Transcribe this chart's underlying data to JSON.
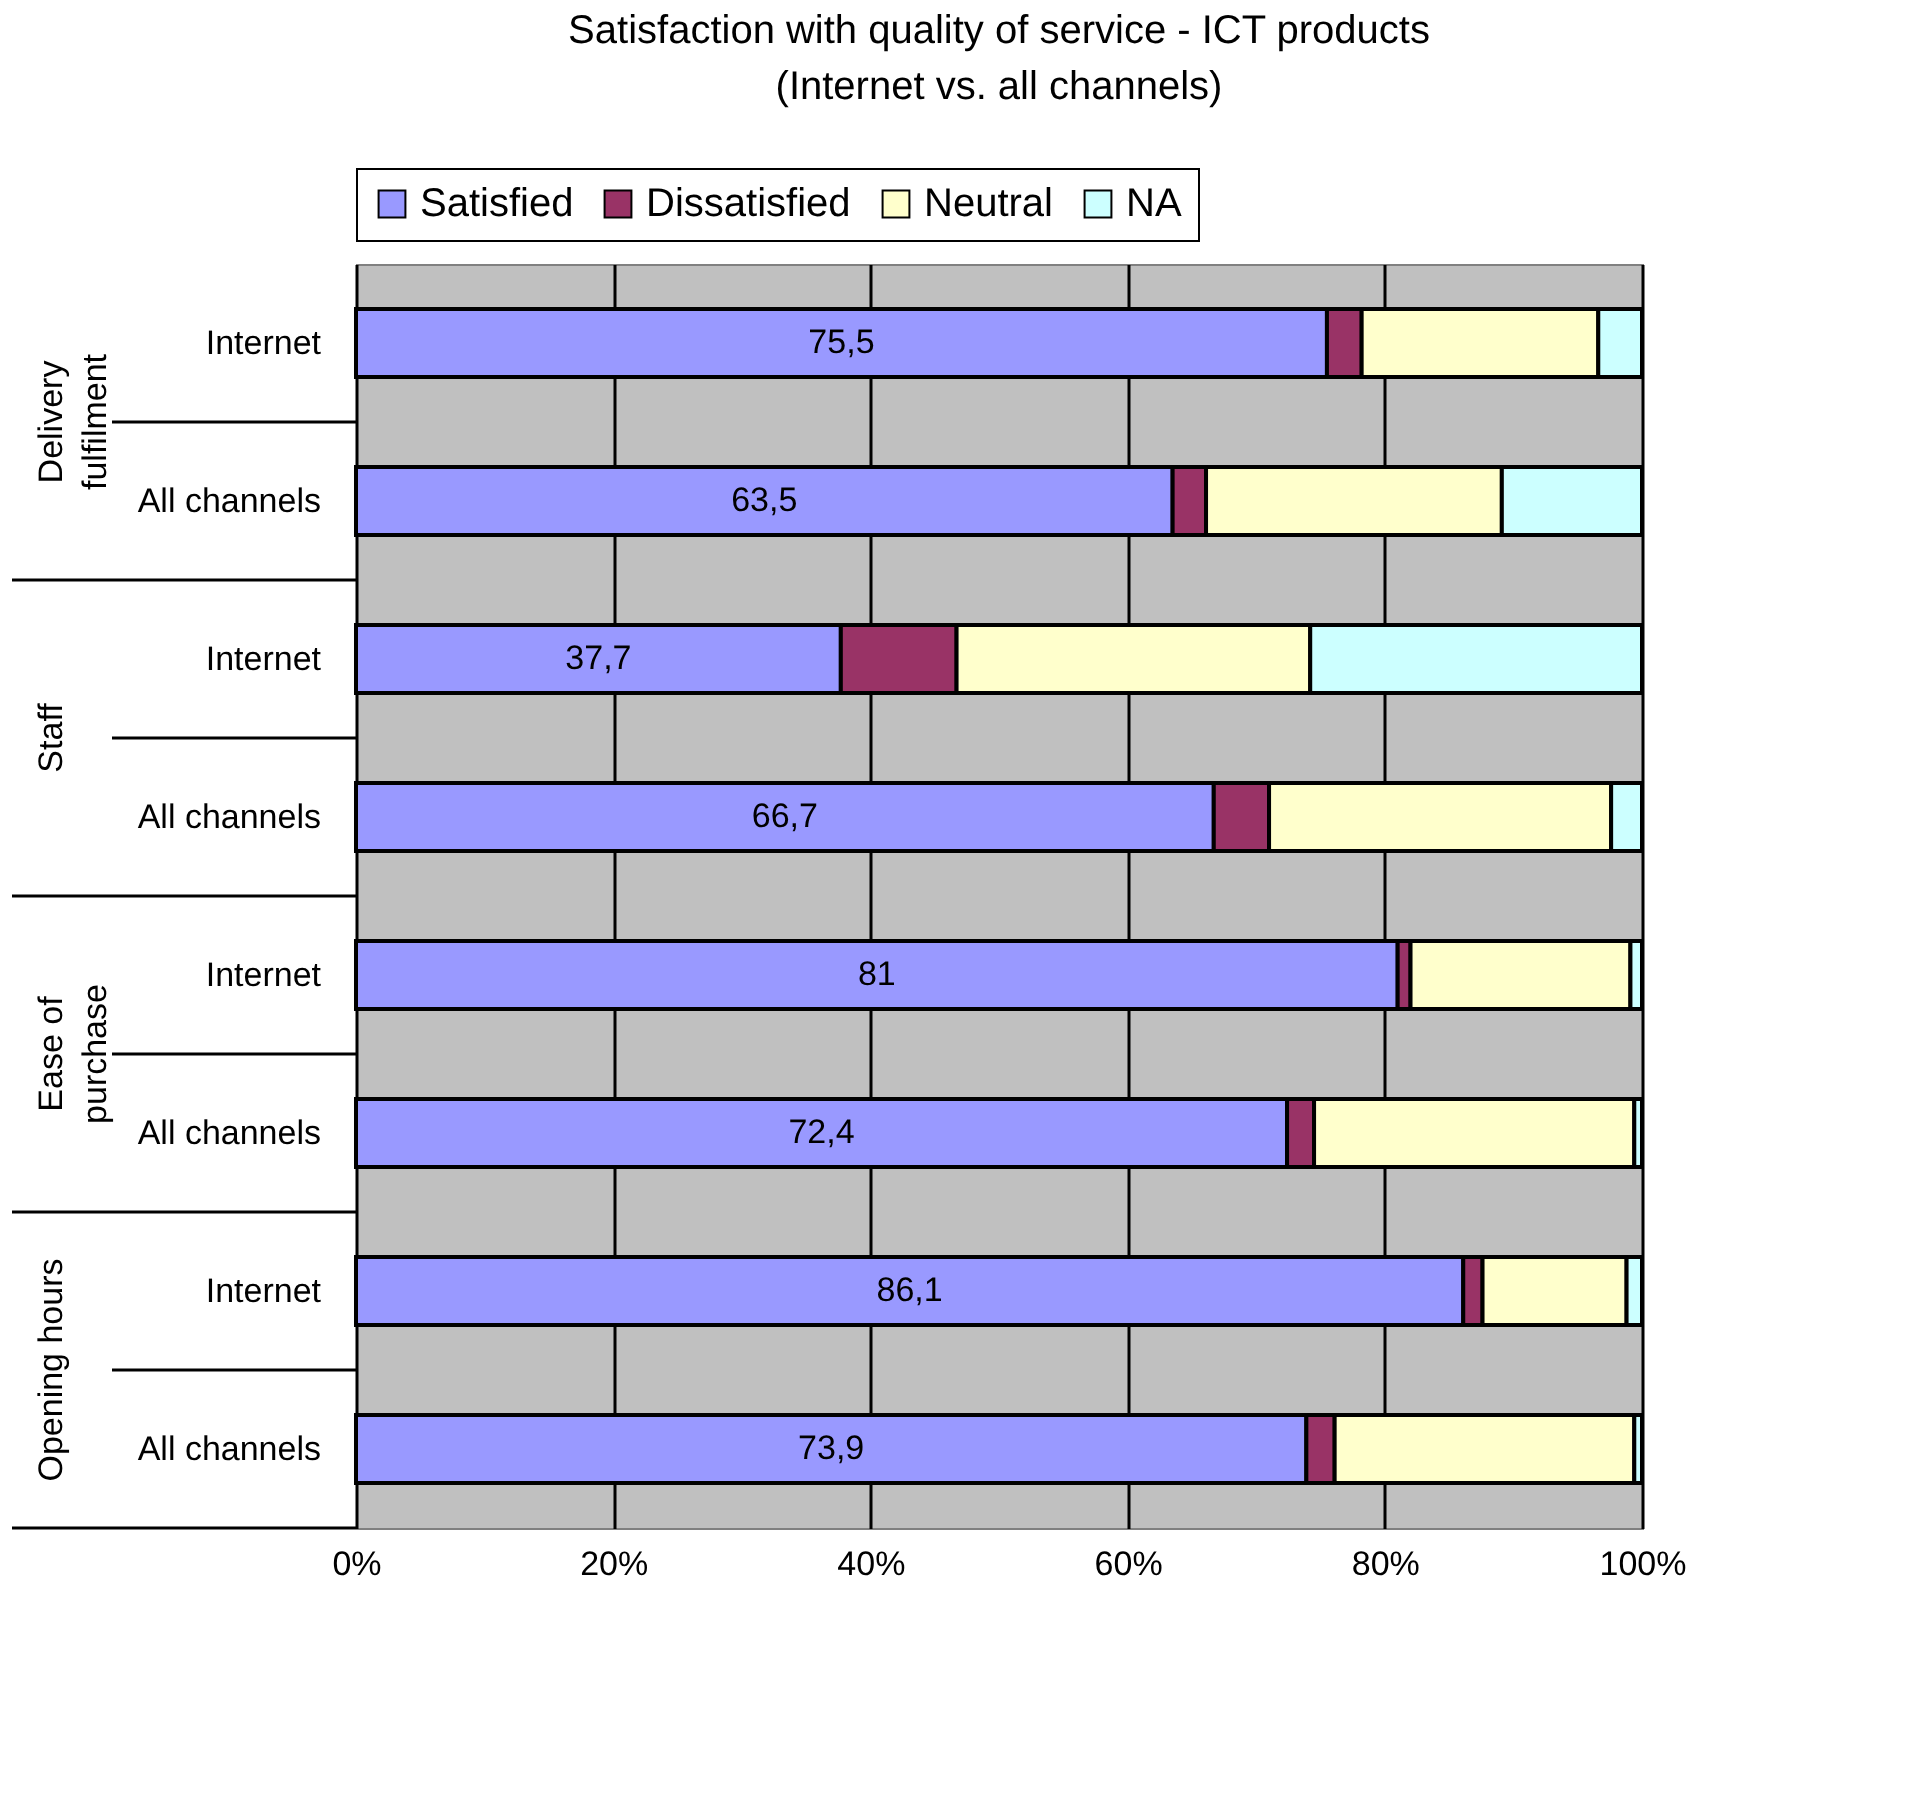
{
  "chart_data": {
    "type": "bar",
    "orientation": "horizontal",
    "stacked": true,
    "title": "Satisfaction with quality of service - ICT products\n(Internet vs. all channels)",
    "categories": [
      "Internet",
      "All channels",
      "Internet",
      "All channels",
      "Internet",
      "All channels",
      "Internet",
      "All channels"
    ],
    "annotations": [
      "Delivery\nfulfilment",
      "Staff",
      "Ease of\npurchase",
      "Opening hours"
    ],
    "series": [
      {
        "name": "Satisfied",
        "color": "#9999ff",
        "values": [
          75.5,
          63.5,
          37.7,
          66.7,
          81,
          72.4,
          86.1,
          73.9
        ],
        "value_labels": [
          "75,5",
          "63,5",
          "37,7",
          "66,7",
          "81",
          "72,4",
          "86,1",
          "73,9"
        ]
      },
      {
        "name": "Dissatisfied",
        "color": "#993366",
        "values": [
          2.7,
          2.6,
          9.0,
          4.3,
          1.0,
          2.1,
          1.5,
          2.2
        ]
      },
      {
        "name": "Neutral",
        "color": "#ffffcc",
        "values": [
          18.4,
          23.0,
          27.5,
          26.6,
          17.1,
          24.9,
          11.2,
          23.3
        ]
      },
      {
        "name": "NA",
        "color": "#ccffff",
        "values": [
          3.4,
          10.9,
          25.8,
          2.4,
          0.9,
          0.6,
          1.2,
          0.6
        ]
      }
    ],
    "xlim": [
      0,
      100
    ],
    "xticks": [
      {
        "value": 0,
        "label": "0%"
      },
      {
        "value": 20,
        "label": "20%"
      },
      {
        "value": 40,
        "label": "40%"
      },
      {
        "value": 60,
        "label": "60%"
      },
      {
        "value": 80,
        "label": "80%"
      },
      {
        "value": 100,
        "label": "100%"
      }
    ],
    "grid": "x",
    "legend": "top"
  }
}
